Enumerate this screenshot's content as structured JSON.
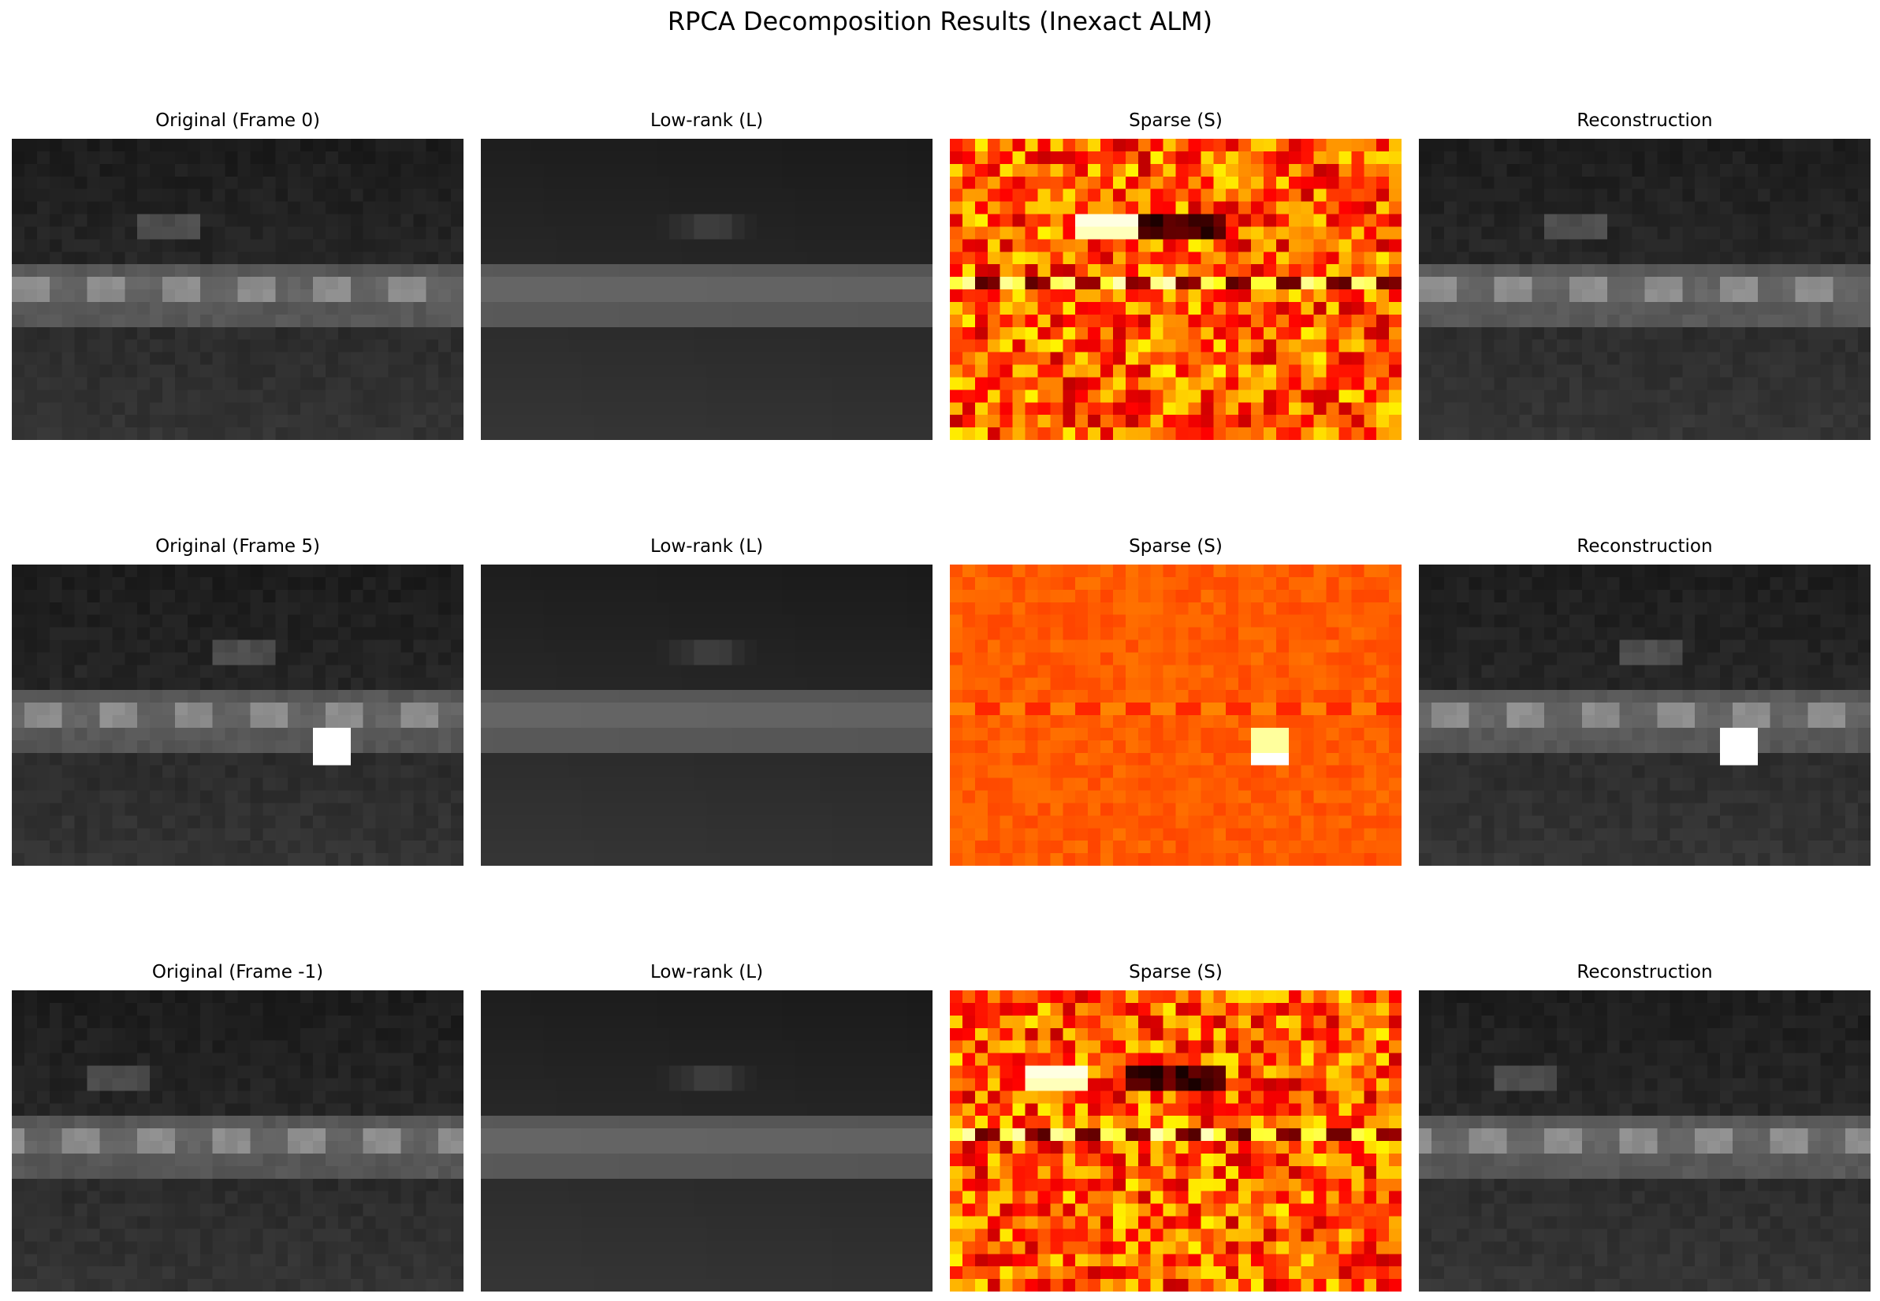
{
  "figure": {
    "title": "RPCA Decomposition Results (Inexact ALM)"
  },
  "chart_data": [
    {
      "type": "heatmap",
      "title": "Original (Frame 0)",
      "colormap": "gray",
      "grid": false,
      "axes_visible": false,
      "rows": 24,
      "cols": 36,
      "content": {
        "sky": "dark gray rows 0-9",
        "road_band_rows": [
          10,
          14
        ],
        "lane_markers": {
          "row_range": [
            11,
            12
          ],
          "starts": [
            0,
            6,
            12,
            18,
            24,
            30
          ],
          "width": 3
        },
        "car_patch": {
          "rows": [
            6,
            7
          ],
          "cols": [
            10,
            14
          ]
        },
        "ground": "dark gray rows 15-23"
      }
    },
    {
      "type": "heatmap",
      "title": "Low-rank (L)",
      "colormap": "gray",
      "grid": false,
      "axes_visible": false,
      "rows": 24,
      "cols": 36,
      "content": {
        "background": "smooth static background",
        "faint_car_trail": {
          "rows": [
            6,
            7
          ],
          "cols": [
            14,
            21
          ]
        }
      }
    },
    {
      "type": "heatmap",
      "title": "Sparse (S)",
      "colormap": "hot",
      "grid": false,
      "axes_visible": false,
      "rows": 24,
      "cols": 36,
      "content": {
        "noise": "strong",
        "bright_patch": {
          "rows": [
            6,
            7
          ],
          "cols": [
            10,
            14
          ]
        },
        "dark_patch": {
          "rows": [
            6,
            7
          ],
          "cols": [
            15,
            21
          ]
        },
        "alternating_lane_row": 11
      }
    },
    {
      "type": "heatmap",
      "title": "Reconstruction",
      "colormap": "gray",
      "grid": false,
      "axes_visible": false,
      "rows": 24,
      "cols": 36,
      "content": "matches Original (Frame 0)"
    },
    {
      "type": "heatmap",
      "title": "Original (Frame 5)",
      "colormap": "gray",
      "grid": false,
      "axes_visible": false,
      "rows": 24,
      "cols": 36,
      "content": {
        "lane_markers": {
          "row_range": [
            11,
            12
          ],
          "starts": [
            1,
            7,
            13,
            19,
            25,
            31
          ],
          "width": 3
        },
        "car_patch": {
          "rows": [
            6,
            7
          ],
          "cols": [
            16,
            20
          ]
        },
        "white_block": {
          "rows": [
            13,
            15
          ],
          "cols": [
            24,
            26
          ]
        }
      }
    },
    {
      "type": "heatmap",
      "title": "Low-rank (L)",
      "colormap": "gray",
      "grid": false,
      "axes_visible": false,
      "rows": 24,
      "cols": 36,
      "content": {
        "background": "smooth static background",
        "faint_car_trail": {
          "rows": [
            6,
            7
          ],
          "cols": [
            14,
            21
          ]
        }
      }
    },
    {
      "type": "heatmap",
      "title": "Sparse (S)",
      "colormap": "hot",
      "grid": false,
      "axes_visible": false,
      "rows": 24,
      "cols": 36,
      "content": {
        "noise": "weak",
        "bright_block": {
          "rows": [
            13,
            15
          ],
          "cols": [
            24,
            26
          ]
        },
        "alternating_lane_row": 11
      }
    },
    {
      "type": "heatmap",
      "title": "Reconstruction",
      "colormap": "gray",
      "grid": false,
      "axes_visible": false,
      "rows": 24,
      "cols": 36,
      "content": "matches Original (Frame 5)"
    },
    {
      "type": "heatmap",
      "title": "Original (Frame -1)",
      "colormap": "gray",
      "grid": false,
      "axes_visible": false,
      "rows": 24,
      "cols": 36,
      "content": {
        "lane_markers": {
          "row_range": [
            11,
            12
          ],
          "starts": [
            -2,
            4,
            10,
            16,
            22,
            28,
            34
          ],
          "width": 3
        },
        "car_patch": {
          "rows": [
            6,
            7
          ],
          "cols": [
            6,
            10
          ]
        }
      }
    },
    {
      "type": "heatmap",
      "title": "Low-rank (L)",
      "colormap": "gray",
      "grid": false,
      "axes_visible": false,
      "rows": 24,
      "cols": 36,
      "content": {
        "background": "smooth static background",
        "faint_car_trail": {
          "rows": [
            6,
            7
          ],
          "cols": [
            14,
            21
          ]
        }
      }
    },
    {
      "type": "heatmap",
      "title": "Sparse (S)",
      "colormap": "hot",
      "grid": false,
      "axes_visible": false,
      "rows": 24,
      "cols": 36,
      "content": {
        "noise": "strong",
        "bright_patch": {
          "rows": [
            6,
            7
          ],
          "cols": [
            6,
            10
          ]
        },
        "dark_patch": {
          "rows": [
            6,
            7
          ],
          "cols": [
            14,
            21
          ]
        },
        "alternating_lane_row": 11
      }
    },
    {
      "type": "heatmap",
      "title": "Reconstruction",
      "colormap": "gray",
      "grid": false,
      "axes_visible": false,
      "rows": 24,
      "cols": 36,
      "content": "matches Original (Frame -1)"
    }
  ]
}
